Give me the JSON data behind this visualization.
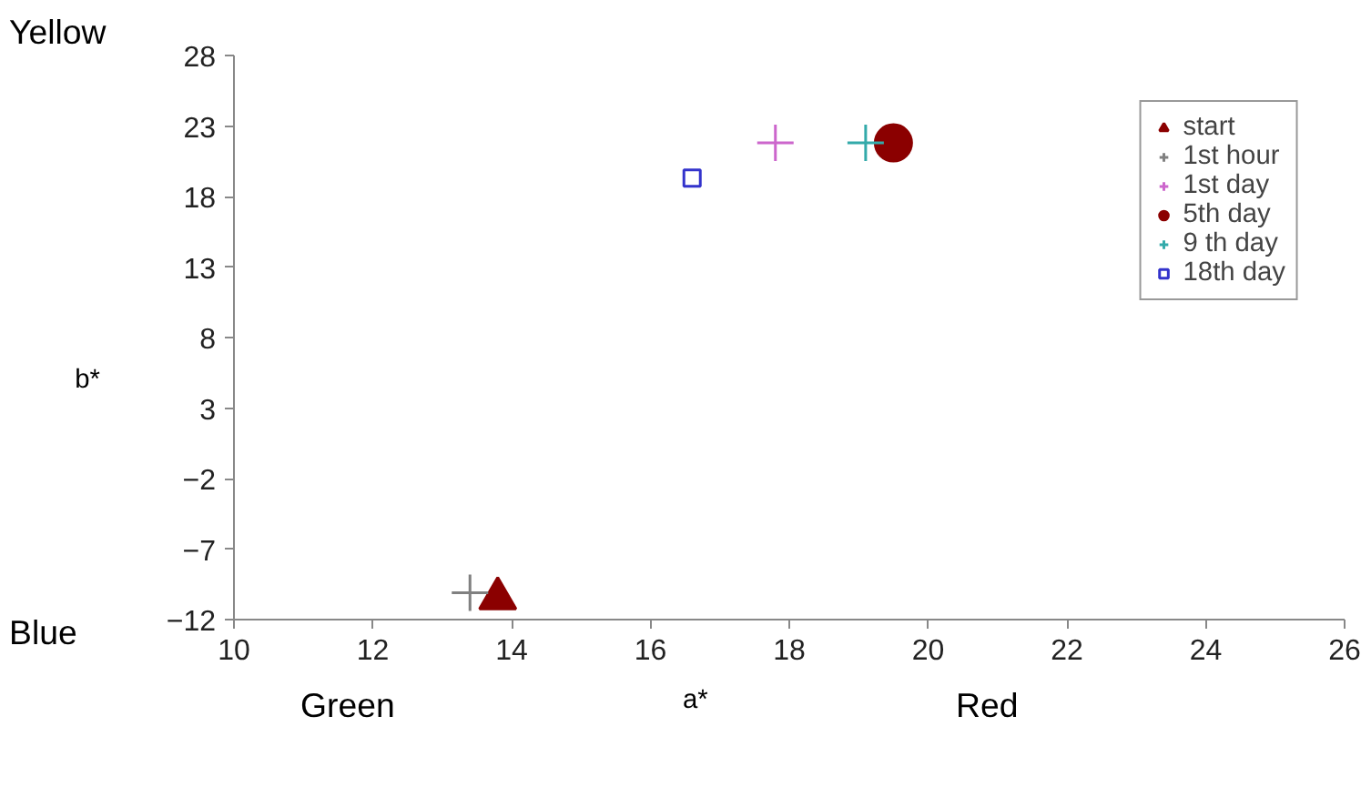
{
  "chart_data": {
    "type": "scatter",
    "xlabel": "a*",
    "ylabel": "b*",
    "annotations": [
      "Yellow",
      "Blue",
      "Green",
      "Red"
    ],
    "xlim": [
      10,
      26
    ],
    "xticks": [
      10,
      12,
      14,
      16,
      18,
      20,
      22,
      24,
      26
    ],
    "ylim": [
      -12,
      28
    ],
    "yticks": [
      -12,
      -7,
      -2,
      3,
      8,
      13,
      18,
      23,
      28
    ],
    "grid": false,
    "legend": "top right",
    "series": [
      {
        "name": "start",
        "color": "#8b0000",
        "marker": "triangle",
        "x": [
          13.8
        ],
        "values": [
          -10.5
        ]
      },
      {
        "name": "1st hour",
        "color": "#808080",
        "marker": "cross",
        "x": [
          13.4
        ],
        "values": [
          -10.1
        ]
      },
      {
        "name": "1st day",
        "color": "#cc66cc",
        "marker": "cross",
        "x": [
          17.8
        ],
        "values": [
          21.8
        ]
      },
      {
        "name": "5th day",
        "color": "#8b0000",
        "marker": "circle",
        "x": [
          19.5
        ],
        "values": [
          21.8
        ]
      },
      {
        "name": "9 th day",
        "color": "#33aaaa",
        "marker": "cross",
        "x": [
          19.1
        ],
        "values": [
          21.8
        ]
      },
      {
        "name": "18th day",
        "color": "#3333cc",
        "marker": "square",
        "x": [
          16.6
        ],
        "values": [
          19.3
        ]
      }
    ]
  }
}
